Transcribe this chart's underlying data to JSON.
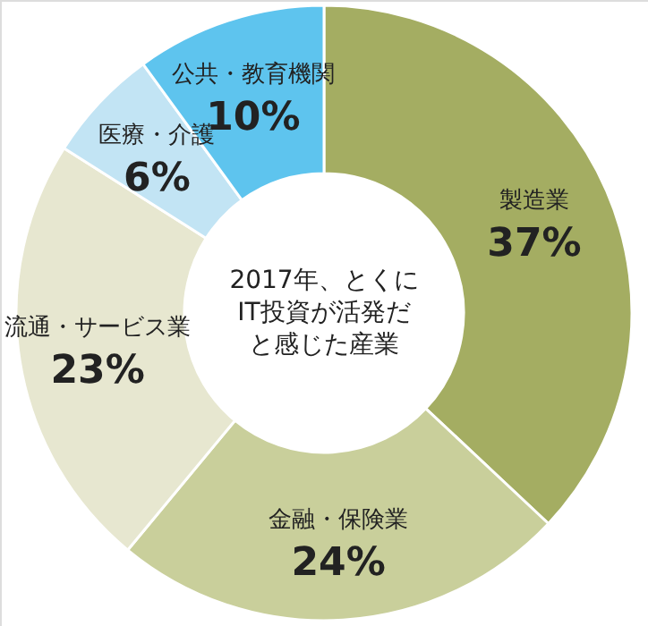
{
  "chart_data": {
    "type": "donut",
    "title": "2017年、とくにIT投資が活発だと感じた産業",
    "categories": [
      "製造業",
      "金融・保険業",
      "流通・サービス業",
      "医療・介護",
      "公共・教育機関"
    ],
    "values": [
      37,
      24,
      23,
      6,
      10
    ],
    "value_labels": [
      "37%",
      "24%",
      "23%",
      "6%",
      "10%"
    ],
    "colors": [
      "#a4ad62",
      "#c9cf9b",
      "#e7e7d0",
      "#c2e4f4",
      "#5ec4ee"
    ],
    "legend": false
  }
}
